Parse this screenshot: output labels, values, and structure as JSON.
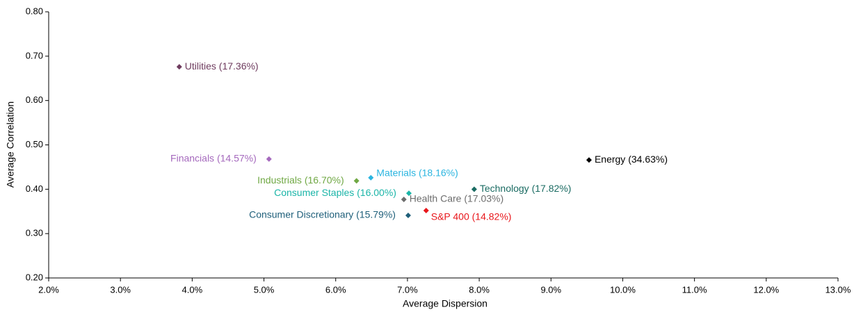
{
  "chart_data": {
    "type": "scatter",
    "xlabel": "Average Dispersion",
    "ylabel": "Average Correlation",
    "xlim": [
      2.0,
      13.0
    ],
    "xticks": [
      {
        "value": 2.0,
        "label": "2.0%"
      },
      {
        "value": 3.0,
        "label": "3.0%"
      },
      {
        "value": 4.0,
        "label": "4.0%"
      },
      {
        "value": 5.0,
        "label": "5.0%"
      },
      {
        "value": 6.0,
        "label": "6.0%"
      },
      {
        "value": 7.0,
        "label": "7.0%"
      },
      {
        "value": 8.0,
        "label": "8.0%"
      },
      {
        "value": 9.0,
        "label": "9.0%"
      },
      {
        "value": 10.0,
        "label": "10.0%"
      },
      {
        "value": 11.0,
        "label": "11.0%"
      },
      {
        "value": 12.0,
        "label": "12.0%"
      },
      {
        "value": 13.0,
        "label": "13.0%"
      }
    ],
    "ylim": [
      0.2,
      0.8
    ],
    "yticks": [
      {
        "value": 0.2,
        "label": "0.20"
      },
      {
        "value": 0.3,
        "label": "0.30"
      },
      {
        "value": 0.4,
        "label": "0.40"
      },
      {
        "value": 0.5,
        "label": "0.50"
      },
      {
        "value": 0.6,
        "label": "0.60"
      },
      {
        "value": 0.7,
        "label": "0.70"
      },
      {
        "value": 0.8,
        "label": "0.80"
      }
    ],
    "series": [
      {
        "name": "Utilities (17.36%)",
        "color": "#6e3b5e",
        "x": [
          3.82
        ],
        "values": [
          0.676
        ],
        "label_position": "right"
      },
      {
        "name": "Financials (14.57%)",
        "color": "#a569bd",
        "x": [
          5.07
        ],
        "values": [
          0.468
        ],
        "label_position": "left"
      },
      {
        "name": "Industrials (16.70%)",
        "color": "#70a844",
        "x": [
          6.29
        ],
        "values": [
          0.419
        ],
        "label_position": "left"
      },
      {
        "name": "Materials (18.16%)",
        "color": "#2bb5e0",
        "x": [
          6.49
        ],
        "values": [
          0.426
        ],
        "label_position": "above-right"
      },
      {
        "name": "Consumer Staples (16.00%)",
        "color": "#1bb5a8",
        "x": [
          7.02
        ],
        "values": [
          0.391
        ],
        "label_position": "left"
      },
      {
        "name": "Health Care (17.03%)",
        "color": "#6d6d6d",
        "x": [
          6.95
        ],
        "values": [
          0.377
        ],
        "label_position": "right"
      },
      {
        "name": "Consumer Discretionary (15.79%)",
        "color": "#1f5f7a",
        "x": [
          7.01
        ],
        "values": [
          0.341
        ],
        "label_position": "left"
      },
      {
        "name": "S&P 400 (14.82%)",
        "color": "#e8161b",
        "x": [
          7.26
        ],
        "values": [
          0.352
        ],
        "label_position": "below-right"
      },
      {
        "name": "Technology (17.82%)",
        "color": "#1a6b62",
        "x": [
          7.93
        ],
        "values": [
          0.4
        ],
        "label_position": "right"
      },
      {
        "name": "Energy (34.63%)",
        "color": "#000000",
        "x": [
          9.53
        ],
        "values": [
          0.466
        ],
        "label_position": "right"
      }
    ]
  }
}
